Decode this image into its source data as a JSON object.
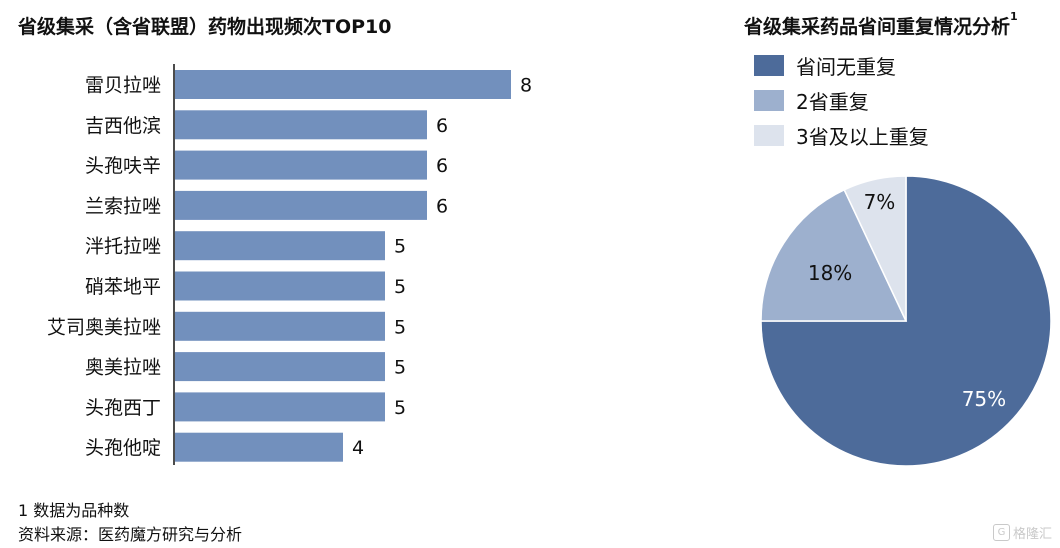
{
  "bar_chart_title": "省级集采（含省联盟）药物出现频次TOP10",
  "pie_chart_title": "省级集采药品省间重复情况分析",
  "pie_title_superscript": "1",
  "colors": {
    "bar": "#7290bd",
    "pie": [
      "#4d6b9a",
      "#9db0ce",
      "#dde3ed"
    ]
  },
  "chart_data": [
    {
      "type": "bar",
      "orientation": "horizontal",
      "title": "省级集采（含省联盟）药物出现频次TOP10",
      "categories": [
        "雷贝拉唑",
        "吉西他滨",
        "头孢呋辛",
        "兰索拉唑",
        "泮托拉唑",
        "硝苯地平",
        "艾司奥美拉唑",
        "奥美拉唑",
        "头孢西丁",
        "头孢他啶"
      ],
      "values": [
        8,
        6,
        6,
        6,
        5,
        5,
        5,
        5,
        5,
        4
      ],
      "xlim": [
        0,
        8
      ],
      "grid": false,
      "data_labels": true
    },
    {
      "type": "pie",
      "title": "省级集采药品省间重复情况分析",
      "slices": [
        {
          "label": "省间无重复",
          "value": 75,
          "display": "75%"
        },
        {
          "label": "2省重复",
          "value": 18,
          "display": "18%"
        },
        {
          "label": "3省及以上重复",
          "value": 7,
          "display": "7%"
        }
      ],
      "legend_position": "top-left"
    }
  ],
  "footnotes": {
    "note": "1 数据为品种数",
    "source": "资料来源：医药魔方研究与分析"
  },
  "watermark": {
    "mark": "G",
    "text": "格隆汇"
  }
}
